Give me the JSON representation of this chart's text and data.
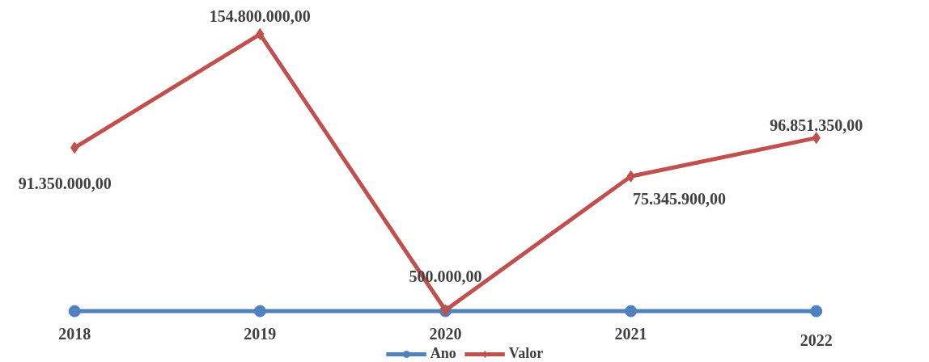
{
  "chart_data": {
    "type": "line",
    "categories": [
      null,
      null,
      null,
      null,
      null
    ],
    "legend": "bottom",
    "tick_labels": false,
    "grid": false,
    "series": [
      {
        "name": "Ano",
        "color": "#4f81bd",
        "marker": "circle",
        "values": [
          2018,
          2019,
          2020,
          2021,
          2022
        ],
        "value_labels": [
          "2018",
          "2019",
          "2020",
          "2021",
          "2022"
        ]
      },
      {
        "name": "Valor",
        "color": "#c0504d",
        "marker": "diamond",
        "values": [
          91350000,
          154800000,
          500000,
          75345900,
          96851350
        ],
        "value_labels": [
          "91.350.000,00",
          "154.800.000,00",
          "500.000,00",
          "75.345.900,00",
          "96.851.350,00"
        ]
      }
    ]
  }
}
